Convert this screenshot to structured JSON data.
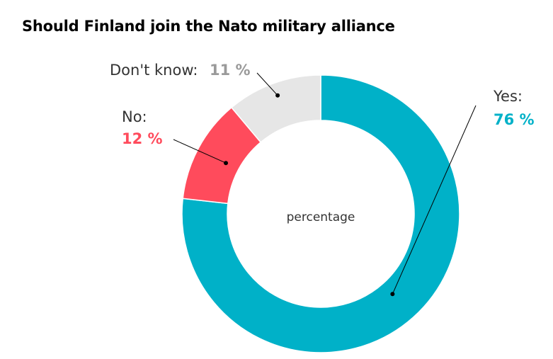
{
  "title": "Should Finland join the Nato military alliance",
  "chart_data": {
    "type": "pie",
    "variant": "donut",
    "title": "Should Finland join the Nato military alliance",
    "center_label": "percentage",
    "unit": "%",
    "slices": [
      {
        "label": "Yes:",
        "value": 76,
        "value_text": "76 %",
        "color": "#00b1c8"
      },
      {
        "label": "No:",
        "value": 12,
        "value_text": "12 %",
        "color": "#ff4b5c"
      },
      {
        "label": "Don't know:",
        "value": 11,
        "value_text": "11 %",
        "color": "#e6e6e6",
        "value_color": "#9a9a9a"
      }
    ]
  }
}
